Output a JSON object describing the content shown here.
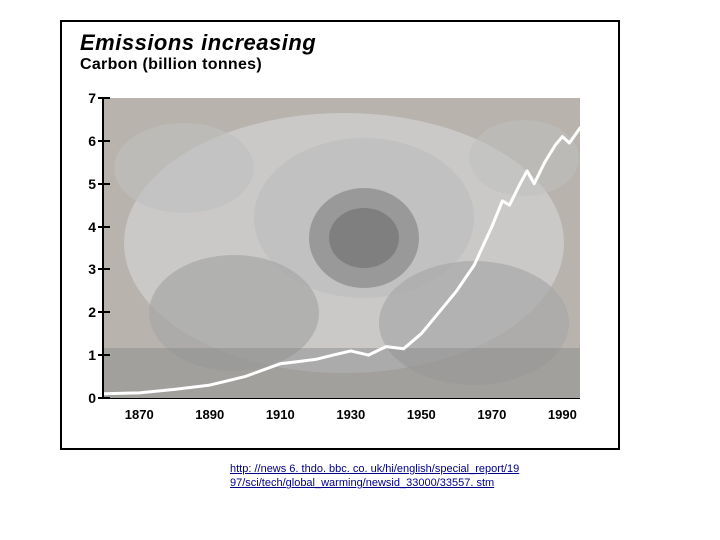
{
  "title": "Emissions increasing",
  "subtitle": "Carbon (billion tonnes)",
  "caption": "http: //news 6. thdo. bbc. co. uk/hi/english/special_report/19 97/sci/tech/global_warming/newsid_33000/33557. stm",
  "chart": {
    "type": "line",
    "line_color": "#ffffff",
    "line_width": 3,
    "axis_color": "#000000",
    "background_color": "#b8b4ad",
    "bg_overlay": {
      "shape": "industrial-skull",
      "tones": [
        "#cccccc",
        "#bfbfbf",
        "#a8a8a8",
        "#888888",
        "#666666"
      ]
    },
    "y": {
      "min": 0,
      "max": 7,
      "ticks": [
        0,
        1,
        2,
        3,
        4,
        5,
        6,
        7
      ]
    },
    "x": {
      "min": 1860,
      "max": 1995,
      "ticks": [
        1870,
        1890,
        1910,
        1930,
        1950,
        1970,
        1990
      ]
    },
    "series": [
      {
        "x": 1860,
        "y": 0.1
      },
      {
        "x": 1870,
        "y": 0.12
      },
      {
        "x": 1880,
        "y": 0.2
      },
      {
        "x": 1890,
        "y": 0.3
      },
      {
        "x": 1900,
        "y": 0.5
      },
      {
        "x": 1910,
        "y": 0.8
      },
      {
        "x": 1915,
        "y": 0.85
      },
      {
        "x": 1920,
        "y": 0.9
      },
      {
        "x": 1925,
        "y": 1.0
      },
      {
        "x": 1930,
        "y": 1.1
      },
      {
        "x": 1935,
        "y": 1.0
      },
      {
        "x": 1940,
        "y": 1.2
      },
      {
        "x": 1945,
        "y": 1.15
      },
      {
        "x": 1950,
        "y": 1.5
      },
      {
        "x": 1955,
        "y": 2.0
      },
      {
        "x": 1960,
        "y": 2.5
      },
      {
        "x": 1965,
        "y": 3.1
      },
      {
        "x": 1970,
        "y": 4.0
      },
      {
        "x": 1973,
        "y": 4.6
      },
      {
        "x": 1975,
        "y": 4.5
      },
      {
        "x": 1978,
        "y": 5.0
      },
      {
        "x": 1980,
        "y": 5.3
      },
      {
        "x": 1982,
        "y": 5.0
      },
      {
        "x": 1985,
        "y": 5.5
      },
      {
        "x": 1988,
        "y": 5.9
      },
      {
        "x": 1990,
        "y": 6.1
      },
      {
        "x": 1992,
        "y": 5.95
      },
      {
        "x": 1995,
        "y": 6.3
      }
    ]
  }
}
